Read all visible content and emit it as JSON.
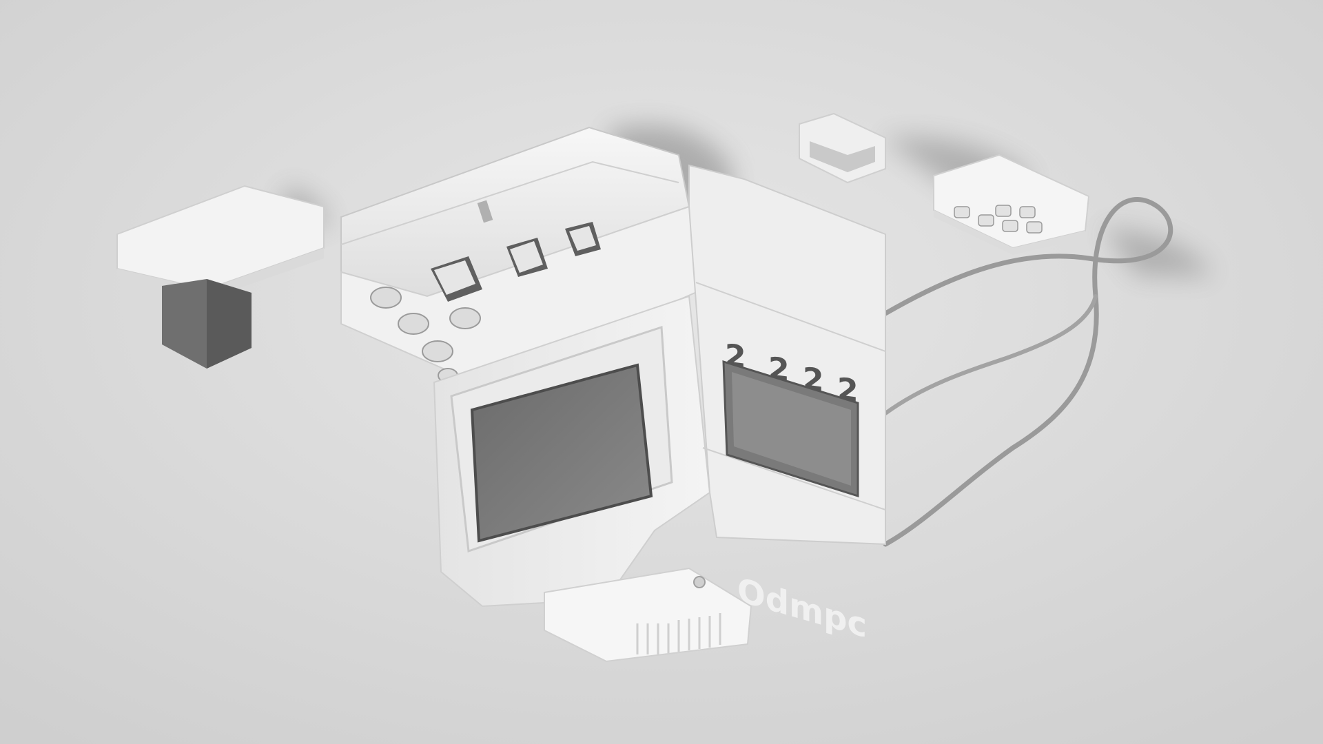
{
  "scene": {
    "background_color": "#d9d9d9",
    "subject": "white plastic retro device with screen, buttons and cable"
  },
  "device": {
    "body_color": "#f2f2f2",
    "shadow_color": "#8c8c8c",
    "screen_color": "#7a7a7a",
    "side_glyphs_top": [
      "2",
      "2",
      "2",
      "2"
    ],
    "side_glyphs_bottom": [
      "?",
      "?"
    ],
    "side_label": "Odmpc"
  },
  "peripherals": {
    "left_module_cap_color": "#6f6f6f",
    "cable_color": "#9a9a9a"
  }
}
